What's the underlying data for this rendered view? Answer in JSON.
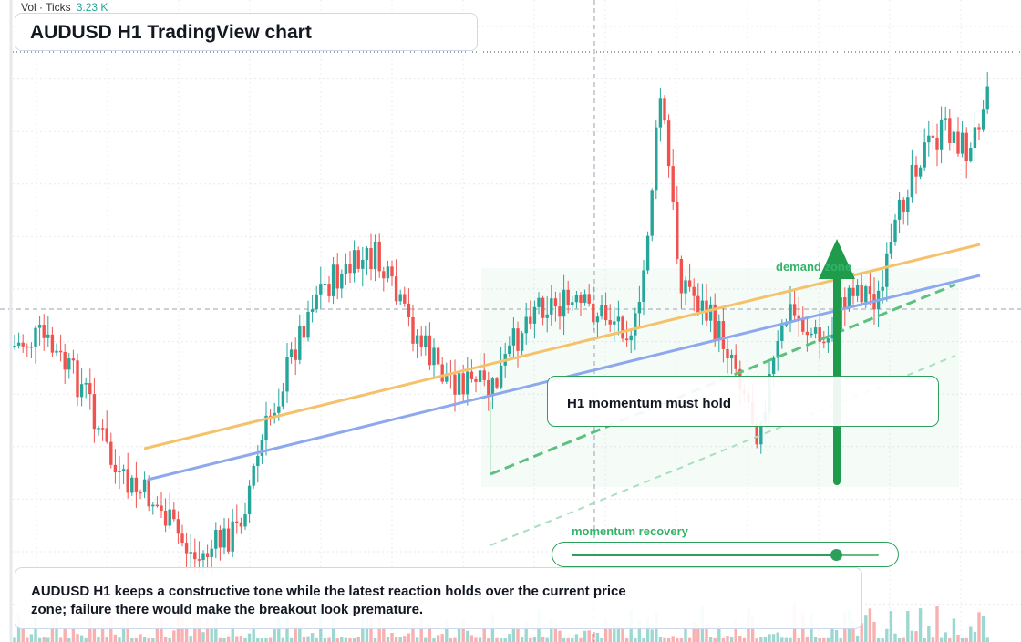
{
  "header": {
    "vol_label": "Vol · Ticks",
    "vol_value": "3.23 K"
  },
  "title": "AUDUSD H1 TradingView chart",
  "callout": "H1 momentum must hold",
  "zone_label": "demand zone",
  "momentum": {
    "label": "momentum recovery",
    "value": 0.86
  },
  "note": "AUDUSD H1 keeps a constructive tone while the latest reaction holds over the current price zone; failure there would make the breakout look premature.",
  "colors": {
    "up": "#26a69a",
    "down": "#ef5350",
    "accent": "#2ca05a",
    "trend_orange": "#f5c26b",
    "trend_blue": "#8ea8ee"
  },
  "icons": {
    "arrow": "up-arrow-icon"
  }
}
